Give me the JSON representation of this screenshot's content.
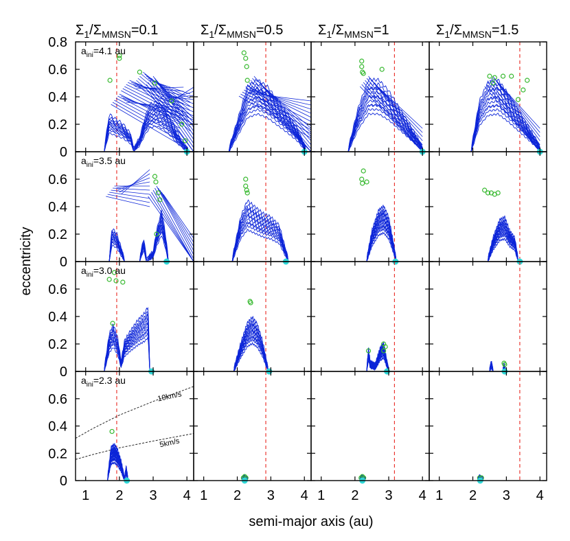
{
  "chart_data": {
    "type": "line",
    "xlabel": "semi-major axis (au)",
    "ylabel": "eccentricity",
    "xlim": [
      0.7,
      4.2
    ],
    "ylim": [
      0,
      0.8
    ],
    "x_ticks": [
      1,
      2,
      3,
      4
    ],
    "y_ticks": [
      0,
      0.2,
      0.4,
      0.6,
      0.8
    ],
    "y_ticks_lower": [
      0,
      0.2,
      0.4,
      0.6
    ],
    "columns": [
      {
        "main": "Σ",
        "sub1": "1",
        "mid": "/Σ",
        "sub2": "MMSN",
        "tail": "=0.1",
        "snow_line_au": 1.92
      },
      {
        "main": "Σ",
        "sub1": "1",
        "mid": "/Σ",
        "sub2": "MMSN",
        "tail": "=0.5",
        "snow_line_au": 2.85
      },
      {
        "main": "Σ",
        "sub1": "1",
        "mid": "/Σ",
        "sub2": "MMSN",
        "tail": "=1",
        "snow_line_au": 3.17
      },
      {
        "main": "Σ",
        "sub1": "1",
        "mid": "/Σ",
        "sub2": "MMSN",
        "tail": "=1.5",
        "snow_line_au": 3.4
      }
    ],
    "rows": [
      {
        "label_main": "a",
        "label_sub": "ini",
        "label_tail": "=4.1 au",
        "a_ini": 4.1
      },
      {
        "label_main": "a",
        "label_sub": "ini",
        "label_tail": "=3.5 au",
        "a_ini": 3.5
      },
      {
        "label_main": "a",
        "label_sub": "ini",
        "label_tail": "=3.0 au",
        "a_ini": 3.0
      },
      {
        "label_main": "a",
        "label_sub": "ini",
        "label_tail": "=2.3 au",
        "a_ini": 2.3
      }
    ],
    "velocity_curves": [
      {
        "label": "10km/s",
        "points": [
          [
            0.7,
            0.31
          ],
          [
            1.2,
            0.38
          ],
          [
            2.0,
            0.48
          ],
          [
            3.0,
            0.58
          ],
          [
            4.2,
            0.69
          ]
        ]
      },
      {
        "label": "5km/s",
        "points": [
          [
            0.7,
            0.155
          ],
          [
            1.2,
            0.19
          ],
          [
            2.0,
            0.24
          ],
          [
            3.0,
            0.29
          ],
          [
            4.2,
            0.345
          ]
        ]
      }
    ],
    "panels": [
      [
        {
          "bands": [
            [
              1.55,
              0
            ],
            [
              1.7,
              0.25
            ],
            [
              1.85,
              0.22
            ],
            [
              2.1,
              0.18
            ],
            [
              2.35,
              0.1
            ],
            [
              2.42,
              0
            ],
            [
              2.6,
              0.08
            ],
            [
              2.75,
              0.22
            ],
            [
              2.9,
              0.32
            ],
            [
              3.1,
              0.34
            ],
            [
              3.3,
              0.3
            ],
            [
              3.5,
              0.22
            ],
            [
              3.7,
              0.12
            ],
            [
              3.9,
              0.04
            ],
            [
              4.05,
              0
            ]
          ],
          "fan": [
            {
              "apex": [
                2.0,
                0.42
              ],
              "end": [
                3.8,
                0.2
              ]
            },
            {
              "apex": [
                2.3,
                0.52
              ],
              "end": [
                3.9,
                0.35
              ]
            },
            {
              "apex": [
                2.7,
                0.58
              ],
              "end": [
                4.1,
                0.3
              ]
            },
            {
              "apex": [
                3.0,
                0.55
              ],
              "end": [
                4.2,
                0.12
              ]
            },
            {
              "apex": [
                3.3,
                0.42
              ],
              "end": [
                4.2,
                0.35
              ]
            }
          ],
          "dots": [
            [
              1.72,
              0.52
            ],
            [
              2.0,
              0.7
            ],
            [
              2.0,
              0.68
            ],
            [
              2.6,
              0.58
            ],
            [
              3.05,
              0.5
            ],
            [
              3.55,
              0.37
            ],
            [
              3.85,
              0.2
            ],
            [
              3.95,
              0.08
            ]
          ],
          "marker": 4.0
        },
        {
          "bands": [
            [
              1.75,
              0
            ],
            [
              2.0,
              0.2
            ],
            [
              2.3,
              0.45
            ],
            [
              2.6,
              0.5
            ],
            [
              2.9,
              0.45
            ],
            [
              3.2,
              0.35
            ],
            [
              3.5,
              0.25
            ],
            [
              3.8,
              0.14
            ],
            [
              4.05,
              0
            ]
          ],
          "fan": [
            {
              "apex": [
                2.5,
                0.55
              ],
              "end": [
                4.2,
                0.05
              ]
            },
            {
              "apex": [
                2.3,
                0.48
              ],
              "end": [
                4.2,
                0.25
              ]
            }
          ],
          "dots": [
            [
              2.2,
              0.72
            ],
            [
              2.25,
              0.68
            ],
            [
              2.28,
              0.62
            ],
            [
              2.3,
              0.52
            ]
          ],
          "marker": 4.0
        },
        {
          "bands": [
            [
              1.8,
              0
            ],
            [
              2.1,
              0.3
            ],
            [
              2.4,
              0.5
            ],
            [
              2.7,
              0.5
            ],
            [
              3.0,
              0.42
            ],
            [
              3.3,
              0.3
            ],
            [
              3.6,
              0.18
            ],
            [
              3.85,
              0.08
            ],
            [
              4.02,
              0
            ]
          ],
          "fan": [
            {
              "apex": [
                2.4,
                0.55
              ],
              "end": [
                4.0,
                0.05
              ]
            }
          ],
          "dots": [
            [
              2.2,
              0.66
            ],
            [
              2.2,
              0.62
            ],
            [
              2.22,
              0.58
            ],
            [
              2.25,
              0.57
            ],
            [
              2.8,
              0.6
            ]
          ],
          "marker": 4.0
        },
        {
          "bands": [
            [
              1.95,
              0
            ],
            [
              2.2,
              0.35
            ],
            [
              2.45,
              0.48
            ],
            [
              2.75,
              0.5
            ],
            [
              3.05,
              0.4
            ],
            [
              3.35,
              0.28
            ],
            [
              3.65,
              0.16
            ],
            [
              3.9,
              0.06
            ],
            [
              4.02,
              0
            ]
          ],
          "fan": [
            {
              "apex": [
                2.6,
                0.55
              ],
              "end": [
                4.0,
                0.05
              ]
            }
          ],
          "dots": [
            [
              2.5,
              0.55
            ],
            [
              2.6,
              0.5
            ],
            [
              2.65,
              0.54
            ],
            [
              2.9,
              0.55
            ],
            [
              3.15,
              0.55
            ],
            [
              3.35,
              0.38
            ],
            [
              3.5,
              0.45
            ],
            [
              3.62,
              0.52
            ]
          ],
          "marker": 4.0
        }
      ],
      [
        {
          "bands": [
            [
              1.7,
              0
            ],
            [
              1.78,
              0.22
            ],
            [
              1.92,
              0.18
            ],
            [
              2.05,
              0.08
            ],
            [
              2.15,
              0
            ],
            [
              2.6,
              0
            ],
            [
              2.72,
              0.15
            ],
            [
              2.8,
              0
            ],
            [
              3.0,
              0.05
            ],
            [
              3.1,
              0.2
            ],
            [
              3.25,
              0.35
            ],
            [
              3.35,
              0.2
            ],
            [
              3.45,
              0
            ]
          ],
          "fan": [
            {
              "apex": [
                1.85,
                0.55
              ],
              "end": [
                2.9,
                0.55
              ]
            },
            {
              "apex": [
                3.1,
                0.55
              ],
              "end": [
                4.2,
                0.05
              ]
            }
          ],
          "dots": [
            [
              3.05,
              0.62
            ],
            [
              3.08,
              0.58
            ],
            [
              3.15,
              0.5
            ],
            [
              3.2,
              0.45
            ],
            [
              3.1,
              0.2
            ]
          ],
          "marker": 3.4
        },
        {
          "bands": [
            [
              1.85,
              0
            ],
            [
              2.1,
              0.3
            ],
            [
              2.3,
              0.42
            ],
            [
              2.5,
              0.38
            ],
            [
              2.75,
              0.33
            ],
            [
              3.0,
              0.3
            ],
            [
              3.25,
              0.24
            ],
            [
              3.45,
              0.06
            ],
            [
              3.52,
              0
            ]
          ],
          "fan": [],
          "dots": [
            [
              2.25,
              0.6
            ],
            [
              2.25,
              0.55
            ],
            [
              2.28,
              0.52
            ],
            [
              2.3,
              0.5
            ]
          ],
          "marker": 3.45
        },
        {
          "bands": [
            [
              2.35,
              0
            ],
            [
              2.5,
              0.2
            ],
            [
              2.7,
              0.35
            ],
            [
              2.85,
              0.38
            ],
            [
              3.0,
              0.3
            ],
            [
              3.15,
              0.1
            ],
            [
              3.22,
              0
            ]
          ],
          "fan": [],
          "dots": [
            [
              2.25,
              0.66
            ],
            [
              2.2,
              0.6
            ],
            [
              2.22,
              0.57
            ],
            [
              2.35,
              0.58
            ]
          ],
          "marker": 3.2
        },
        {
          "bands": [
            [
              2.45,
              0
            ],
            [
              2.6,
              0.15
            ],
            [
              2.8,
              0.28
            ],
            [
              2.95,
              0.3
            ],
            [
              3.1,
              0.2
            ],
            [
              3.25,
              0.15
            ],
            [
              3.35,
              0
            ]
          ],
          "fan": [],
          "dots": [
            [
              2.35,
              0.52
            ],
            [
              2.45,
              0.5
            ],
            [
              2.55,
              0.5
            ],
            [
              2.65,
              0.49
            ],
            [
              2.75,
              0.5
            ]
          ],
          "marker": 3.4
        }
      ],
      [
        {
          "bands": [
            [
              1.55,
              0
            ],
            [
              1.7,
              0.25
            ],
            [
              1.82,
              0.32
            ],
            [
              1.95,
              0.22
            ],
            [
              2.05,
              0.05
            ],
            [
              2.15,
              0.2
            ],
            [
              2.35,
              0.28
            ],
            [
              2.55,
              0.35
            ],
            [
              2.75,
              0.4
            ],
            [
              2.85,
              0.45
            ],
            [
              2.9,
              0
            ]
          ],
          "fan": [],
          "dots": [
            [
              1.7,
              0.67
            ],
            [
              1.85,
              0.72
            ],
            [
              1.9,
              0.66
            ],
            [
              2.1,
              0.65
            ],
            [
              1.8,
              0.35
            ]
          ],
          "marker": 2.95
        },
        {
          "bands": [
            [
              1.9,
              0
            ],
            [
              2.1,
              0.18
            ],
            [
              2.3,
              0.33
            ],
            [
              2.45,
              0.37
            ],
            [
              2.6,
              0.32
            ],
            [
              2.75,
              0.2
            ],
            [
              2.85,
              0.08
            ],
            [
              2.92,
              0
            ]
          ],
          "fan": [],
          "dots": [
            [
              2.38,
              0.51
            ],
            [
              2.4,
              0.5
            ]
          ],
          "marker": 2.95
        },
        {
          "bands": [
            [
              2.35,
              0
            ],
            [
              2.4,
              0.15
            ],
            [
              2.45,
              0.05
            ],
            [
              2.6,
              0.03
            ],
            [
              2.75,
              0.15
            ],
            [
              2.85,
              0.18
            ],
            [
              2.95,
              0.05
            ],
            [
              3.0,
              0
            ]
          ],
          "fan": [],
          "dots": [
            [
              2.4,
              0.15
            ],
            [
              2.85,
              0.2
            ],
            [
              2.9,
              0.18
            ],
            [
              2.85,
              0.15
            ]
          ],
          "marker": 2.95
        },
        {
          "bands": [
            [
              2.5,
              0
            ],
            [
              2.55,
              0.05
            ],
            [
              2.6,
              0
            ],
            [
              2.9,
              0
            ],
            [
              2.93,
              0.03
            ],
            [
              2.97,
              0
            ]
          ],
          "fan": [],
          "dots": [
            [
              2.93,
              0.06
            ],
            [
              2.95,
              0.05
            ]
          ],
          "marker": 2.95
        }
      ],
      [
        {
          "bands": [
            [
              1.65,
              0
            ],
            [
              1.75,
              0.22
            ],
            [
              1.85,
              0.24
            ],
            [
              1.95,
              0.2
            ],
            [
              2.05,
              0.12
            ],
            [
              2.15,
              0
            ],
            [
              2.2,
              0.08
            ],
            [
              2.25,
              0
            ]
          ],
          "fan": [],
          "dots": [
            [
              1.78,
              0.36
            ]
          ],
          "marker": 2.22
        },
        {
          "bands": [
            [
              2.15,
              0
            ],
            [
              2.2,
              0.02
            ],
            [
              2.3,
              0
            ]
          ],
          "fan": [],
          "dots": [
            [
              2.18,
              0.02
            ],
            [
              2.22,
              0.03
            ],
            [
              2.26,
              0.02
            ]
          ],
          "marker": 2.22
        },
        {
          "bands": [
            [
              2.15,
              0
            ],
            [
              2.2,
              0.02
            ],
            [
              2.3,
              0
            ]
          ],
          "fan": [],
          "dots": [
            [
              2.18,
              0.02
            ],
            [
              2.22,
              0.03
            ],
            [
              2.26,
              0.02
            ]
          ],
          "marker": 2.22
        },
        {
          "bands": [
            [
              2.15,
              0
            ],
            [
              2.2,
              0.02
            ],
            [
              2.3,
              0
            ]
          ],
          "fan": [],
          "dots": [
            [
              2.2,
              0.02
            ],
            [
              2.26,
              0.02
            ]
          ],
          "marker": 2.22
        }
      ]
    ],
    "colors": {
      "curve": "#0b24d8",
      "dot": "#35b82d",
      "marker": "#2ed7d7",
      "snow_line": "#e8261f",
      "velocity": "#222222"
    }
  }
}
